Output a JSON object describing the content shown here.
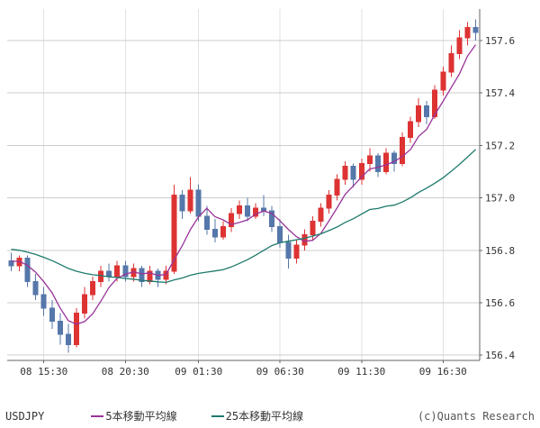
{
  "window": {
    "title": "USDJPY candlestick chart"
  },
  "footer": {
    "symbol": "USDJPY",
    "legend": [
      {
        "label": "5本移動平均線",
        "color": "#993399",
        "period": 5
      },
      {
        "label": "25本移動平均線",
        "color": "#1d7a6c",
        "period": 25
      }
    ],
    "credit": "(c)Quants Research"
  },
  "chart_data": {
    "type": "candlestick",
    "title": "USDJPY 30-minute candlestick chart with 5-period and 25-period moving averages",
    "xlabel": "",
    "ylabel": "",
    "y_axis": {
      "min": 156.38,
      "max": 157.72,
      "ticks": [
        156.4,
        156.6,
        156.8,
        157.0,
        157.2,
        157.4,
        157.6
      ]
    },
    "x_ticks": [
      {
        "index": 4,
        "label": "08 15:30"
      },
      {
        "index": 14,
        "label": "08 20:30"
      },
      {
        "index": 23,
        "label": "09 01:30"
      },
      {
        "index": 33,
        "label": "09 06:30"
      },
      {
        "index": 43,
        "label": "09 11:30"
      },
      {
        "index": 53,
        "label": "09 16:30"
      }
    ],
    "colors": {
      "up": "#dd3333",
      "down": "#5577aa",
      "grid_h": "#cccccc",
      "grid_v": "#e2e2e2",
      "axis": "#666666"
    },
    "prior_closes": [
      156.86,
      156.86,
      156.85,
      156.85,
      156.84,
      156.84,
      156.83,
      156.83,
      156.82,
      156.82,
      156.81,
      156.81,
      156.8,
      156.8,
      156.79,
      156.79,
      156.78,
      156.78,
      156.77,
      156.77,
      156.77,
      156.76,
      156.76,
      156.76
    ],
    "candles": [
      [
        156.76,
        156.79,
        156.72,
        156.74
      ],
      [
        156.74,
        156.78,
        156.72,
        156.77
      ],
      [
        156.77,
        156.78,
        156.66,
        156.68
      ],
      [
        156.68,
        156.71,
        156.61,
        156.63
      ],
      [
        156.63,
        156.66,
        156.55,
        156.58
      ],
      [
        156.58,
        156.61,
        156.5,
        156.53
      ],
      [
        156.53,
        156.56,
        156.44,
        156.48
      ],
      [
        156.48,
        156.52,
        156.41,
        156.44
      ],
      [
        156.44,
        156.58,
        156.43,
        156.56
      ],
      [
        156.56,
        156.66,
        156.54,
        156.63
      ],
      [
        156.63,
        156.7,
        156.61,
        156.68
      ],
      [
        156.68,
        156.74,
        156.66,
        156.72
      ],
      [
        156.72,
        156.75,
        156.68,
        156.7
      ],
      [
        156.7,
        156.76,
        156.68,
        156.74
      ],
      [
        156.74,
        156.76,
        156.68,
        156.7
      ],
      [
        156.7,
        156.75,
        156.68,
        156.73
      ],
      [
        156.73,
        156.74,
        156.66,
        156.68
      ],
      [
        156.68,
        156.74,
        156.67,
        156.72
      ],
      [
        156.72,
        156.73,
        156.66,
        156.69
      ],
      [
        156.69,
        156.74,
        156.67,
        156.72
      ],
      [
        156.72,
        157.05,
        156.71,
        157.01
      ],
      [
        157.01,
        157.03,
        156.92,
        156.95
      ],
      [
        156.95,
        157.08,
        156.94,
        157.03
      ],
      [
        157.03,
        157.05,
        156.91,
        156.93
      ],
      [
        156.93,
        156.97,
        156.86,
        156.88
      ],
      [
        156.88,
        156.92,
        156.83,
        156.85
      ],
      [
        156.85,
        156.91,
        156.84,
        156.89
      ],
      [
        156.89,
        156.96,
        156.87,
        156.94
      ],
      [
        156.94,
        156.99,
        156.92,
        156.97
      ],
      [
        156.97,
        157.0,
        156.91,
        156.93
      ],
      [
        156.93,
        156.98,
        156.92,
        156.96
      ],
      [
        156.96,
        157.01,
        156.93,
        156.95
      ],
      [
        156.95,
        156.97,
        156.87,
        156.89
      ],
      [
        156.89,
        156.92,
        156.81,
        156.83
      ],
      [
        156.83,
        156.86,
        156.73,
        156.77
      ],
      [
        156.77,
        156.84,
        156.75,
        156.82
      ],
      [
        156.82,
        156.88,
        156.8,
        156.86
      ],
      [
        156.86,
        156.93,
        156.84,
        156.91
      ],
      [
        156.91,
        156.98,
        156.89,
        156.96
      ],
      [
        156.96,
        157.03,
        156.94,
        157.01
      ],
      [
        157.01,
        157.09,
        156.99,
        157.07
      ],
      [
        157.07,
        157.14,
        157.05,
        157.12
      ],
      [
        157.12,
        157.13,
        157.04,
        157.07
      ],
      [
        157.07,
        157.15,
        157.05,
        157.13
      ],
      [
        157.13,
        157.19,
        157.1,
        157.16
      ],
      [
        157.16,
        157.17,
        157.08,
        157.1
      ],
      [
        157.1,
        157.19,
        157.09,
        157.17
      ],
      [
        157.17,
        157.18,
        157.1,
        157.13
      ],
      [
        157.13,
        157.25,
        157.12,
        157.23
      ],
      [
        157.23,
        157.31,
        157.21,
        157.29
      ],
      [
        157.29,
        157.38,
        157.27,
        157.35
      ],
      [
        157.35,
        157.37,
        157.28,
        157.31
      ],
      [
        157.31,
        157.43,
        157.3,
        157.41
      ],
      [
        157.41,
        157.5,
        157.39,
        157.48
      ],
      [
        157.48,
        157.58,
        157.46,
        157.55
      ],
      [
        157.55,
        157.64,
        157.53,
        157.61
      ],
      [
        157.61,
        157.67,
        157.58,
        157.65
      ],
      [
        157.65,
        157.68,
        157.6,
        157.63
      ]
    ],
    "moving_averages": [
      {
        "name": "5本移動平均線",
        "period": 5,
        "color": "#993399"
      },
      {
        "name": "25本移動平均線",
        "period": 25,
        "color": "#1d7a6c"
      }
    ],
    "legend_position": "bottom",
    "grid": true
  }
}
